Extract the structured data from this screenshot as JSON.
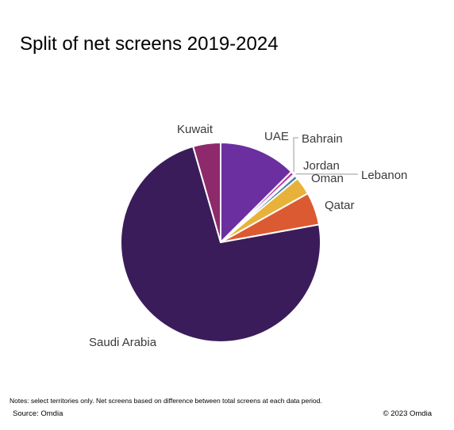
{
  "page": {
    "notes": "Notes: select territories only. Net screens based on difference between total screens at each data period.",
    "source": "Source: Omdia",
    "copyright": "© 2023 Omdia"
  },
  "chart_data": {
    "type": "pie",
    "title": "Split of net screens 2019-2024",
    "legend": "none",
    "slices": [
      {
        "label": "UAE",
        "value": 12.5,
        "color": "#6B2FA0"
      },
      {
        "label": "Bahrain",
        "value": 0.6,
        "color": "#C43BAA"
      },
      {
        "label": "Lebanon",
        "value": 0.25,
        "color": "#2A8C8C"
      },
      {
        "label": "Jordan",
        "value": 0.6,
        "color": "#4B7FA8"
      },
      {
        "label": "Oman",
        "value": 2.9,
        "color": "#E8B23A"
      },
      {
        "label": "Qatar",
        "value": 5.3,
        "color": "#DC5A32"
      },
      {
        "label": "Saudi Arabia",
        "value": 73.4,
        "color": "#3B1C5A"
      },
      {
        "label": "Kuwait",
        "value": 4.45,
        "color": "#8E2A6B"
      }
    ]
  }
}
